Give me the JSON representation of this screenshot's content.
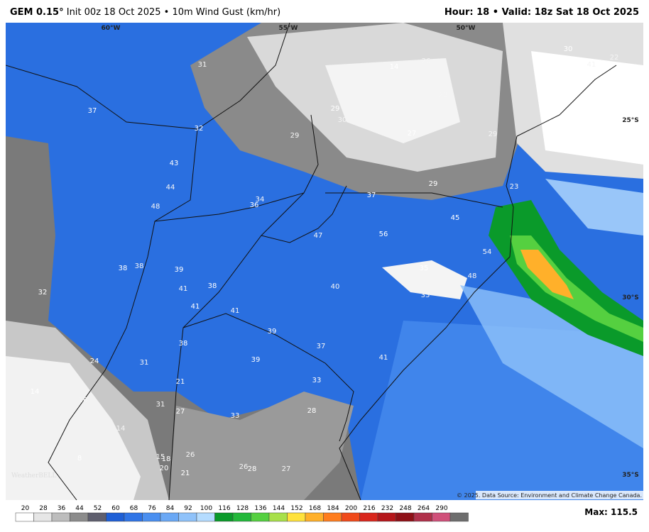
{
  "header": {
    "model": "GEM 0.15°",
    "run": "Init 00z 18 Oct 2025 • 10m Wind Gust (km/hr)",
    "valid": "Hour: 18 • Valid: 18z Sat 18 Oct 2025"
  },
  "map": {
    "graticule_labels": [
      "60°W",
      "55°W",
      "50°W",
      "25°S",
      "30°S",
      "35°S"
    ],
    "point_labels": [
      31,
      14,
      26,
      30,
      22,
      41,
      41,
      37,
      23,
      29,
      30,
      32,
      29,
      27,
      29,
      43,
      44,
      29,
      23,
      37,
      34,
      36,
      48,
      45,
      47,
      56,
      54,
      35,
      48,
      38,
      38,
      39,
      41,
      38,
      40,
      32,
      33,
      41,
      41,
      39,
      37,
      38,
      41,
      24,
      31,
      39,
      21,
      33,
      16,
      14,
      31,
      27,
      33,
      28,
      14,
      8,
      15,
      18,
      26,
      20,
      26,
      28,
      27,
      21
    ],
    "credit": "© 2025. Data Source: Environment and Climate Change Canada.",
    "logo": "WeatherBELL"
  },
  "legend": {
    "ticks": [
      20,
      28,
      36,
      44,
      52,
      60,
      68,
      76,
      84,
      92,
      100,
      116,
      128,
      136,
      144,
      152,
      168,
      184,
      200,
      216,
      232,
      248,
      264,
      290
    ],
    "colors": [
      "#ffffff",
      "#e6e6e6",
      "#bdbdbd",
      "#8c8c8c",
      "#5f5f6e",
      "#1e5fd6",
      "#2f74e6",
      "#4a8ff0",
      "#6aa8f5",
      "#8fc2fa",
      "#b5dcff",
      "#0a9a2a",
      "#22b83a",
      "#55d040",
      "#a8e04a",
      "#ffe23c",
      "#ffb02a",
      "#ff7d1e",
      "#f04a1a",
      "#d9261c",
      "#b5161a",
      "#8e1016",
      "#b0304a",
      "#d0507a",
      "#6e6e6e"
    ],
    "max": "Max: 115.5"
  }
}
